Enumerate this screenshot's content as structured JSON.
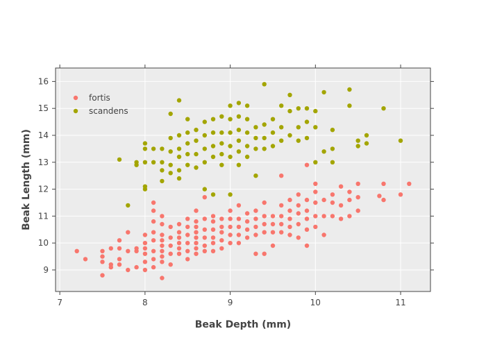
{
  "chart_data": {
    "type": "scatter",
    "title": "",
    "xlabel": "Beak Depth (mm)",
    "ylabel": "Beak Length (mm)",
    "xlim": [
      6.95,
      11.35
    ],
    "ylim": [
      8.2,
      16.5
    ],
    "xticks": [
      7,
      8,
      9,
      10,
      11
    ],
    "yticks": [
      9,
      10,
      11,
      12,
      13,
      14,
      15,
      16
    ],
    "grid": true,
    "legend_position": "top-left",
    "background_color": "#ececec",
    "series": [
      {
        "name": "fortis",
        "color": "#f8766d",
        "points": [
          [
            7.2,
            9.7
          ],
          [
            7.3,
            9.4
          ],
          [
            7.5,
            9.7
          ],
          [
            7.5,
            9.5
          ],
          [
            7.5,
            9.3
          ],
          [
            7.5,
            8.8
          ],
          [
            7.6,
            9.8
          ],
          [
            7.6,
            9.2
          ],
          [
            7.6,
            9.1
          ],
          [
            7.7,
            10.1
          ],
          [
            7.7,
            9.8
          ],
          [
            7.7,
            9.4
          ],
          [
            7.7,
            9.2
          ],
          [
            7.8,
            10.4
          ],
          [
            7.8,
            9.7
          ],
          [
            7.8,
            9.0
          ],
          [
            7.9,
            9.8
          ],
          [
            7.9,
            9.7
          ],
          [
            7.9,
            9.1
          ],
          [
            8.0,
            10.3
          ],
          [
            8.0,
            10.0
          ],
          [
            8.0,
            9.8
          ],
          [
            8.0,
            9.6
          ],
          [
            8.0,
            9.3
          ],
          [
            8.0,
            9.0
          ],
          [
            8.1,
            11.5
          ],
          [
            8.1,
            11.2
          ],
          [
            8.1,
            10.8
          ],
          [
            8.1,
            10.4
          ],
          [
            8.1,
            10.1
          ],
          [
            8.1,
            9.7
          ],
          [
            8.1,
            9.4
          ],
          [
            8.1,
            9.1
          ],
          [
            8.2,
            11.0
          ],
          [
            8.2,
            10.7
          ],
          [
            8.2,
            10.3
          ],
          [
            8.2,
            10.1
          ],
          [
            8.2,
            9.9
          ],
          [
            8.2,
            9.7
          ],
          [
            8.2,
            9.5
          ],
          [
            8.2,
            9.3
          ],
          [
            8.2,
            8.7
          ],
          [
            8.3,
            10.6
          ],
          [
            8.3,
            10.2
          ],
          [
            8.3,
            9.9
          ],
          [
            8.3,
            9.6
          ],
          [
            8.3,
            9.2
          ],
          [
            8.4,
            10.7
          ],
          [
            8.4,
            10.4
          ],
          [
            8.4,
            10.2
          ],
          [
            8.4,
            10.0
          ],
          [
            8.4,
            9.8
          ],
          [
            8.4,
            9.6
          ],
          [
            8.5,
            10.9
          ],
          [
            8.5,
            10.6
          ],
          [
            8.5,
            10.3
          ],
          [
            8.5,
            10.0
          ],
          [
            8.5,
            9.7
          ],
          [
            8.5,
            9.4
          ],
          [
            8.6,
            11.2
          ],
          [
            8.6,
            10.8
          ],
          [
            8.6,
            10.6
          ],
          [
            8.6,
            10.4
          ],
          [
            8.6,
            10.2
          ],
          [
            8.6,
            10.0
          ],
          [
            8.6,
            9.8
          ],
          [
            8.6,
            9.6
          ],
          [
            8.7,
            11.7
          ],
          [
            8.7,
            10.9
          ],
          [
            8.7,
            10.5
          ],
          [
            8.7,
            10.2
          ],
          [
            8.7,
            9.9
          ],
          [
            8.7,
            9.7
          ],
          [
            8.8,
            11.0
          ],
          [
            8.8,
            10.8
          ],
          [
            8.8,
            10.5
          ],
          [
            8.8,
            10.2
          ],
          [
            8.8,
            10.0
          ],
          [
            8.8,
            9.7
          ],
          [
            8.9,
            10.9
          ],
          [
            8.9,
            10.6
          ],
          [
            8.9,
            10.4
          ],
          [
            8.9,
            10.1
          ],
          [
            8.9,
            9.8
          ],
          [
            9.0,
            11.2
          ],
          [
            9.0,
            10.9
          ],
          [
            9.0,
            10.6
          ],
          [
            9.0,
            10.3
          ],
          [
            9.0,
            10.0
          ],
          [
            9.1,
            11.4
          ],
          [
            9.1,
            10.9
          ],
          [
            9.1,
            10.6
          ],
          [
            9.1,
            10.3
          ],
          [
            9.1,
            10.0
          ],
          [
            9.2,
            11.1
          ],
          [
            9.2,
            10.8
          ],
          [
            9.2,
            10.5
          ],
          [
            9.2,
            10.2
          ],
          [
            9.3,
            11.2
          ],
          [
            9.3,
            10.9
          ],
          [
            9.3,
            10.6
          ],
          [
            9.3,
            10.3
          ],
          [
            9.3,
            9.6
          ],
          [
            9.4,
            11.5
          ],
          [
            9.4,
            11.0
          ],
          [
            9.4,
            10.7
          ],
          [
            9.4,
            10.4
          ],
          [
            9.4,
            9.6
          ],
          [
            9.5,
            11.0
          ],
          [
            9.5,
            10.7
          ],
          [
            9.5,
            10.4
          ],
          [
            9.5,
            9.9
          ],
          [
            9.6,
            11.4
          ],
          [
            9.6,
            11.0
          ],
          [
            9.6,
            10.7
          ],
          [
            9.6,
            10.4
          ],
          [
            9.6,
            12.5
          ],
          [
            9.7,
            11.6
          ],
          [
            9.7,
            11.2
          ],
          [
            9.7,
            10.9
          ],
          [
            9.7,
            10.6
          ],
          [
            9.7,
            10.3
          ],
          [
            9.8,
            11.8
          ],
          [
            9.8,
            11.4
          ],
          [
            9.8,
            11.1
          ],
          [
            9.8,
            10.7
          ],
          [
            9.8,
            10.2
          ],
          [
            9.9,
            12.9
          ],
          [
            9.9,
            11.6
          ],
          [
            9.9,
            11.2
          ],
          [
            9.9,
            10.9
          ],
          [
            9.9,
            10.5
          ],
          [
            9.9,
            9.9
          ],
          [
            10.0,
            12.2
          ],
          [
            10.0,
            11.9
          ],
          [
            10.0,
            11.5
          ],
          [
            10.0,
            11.0
          ],
          [
            10.0,
            10.6
          ],
          [
            10.1,
            11.6
          ],
          [
            10.1,
            11.0
          ],
          [
            10.1,
            10.3
          ],
          [
            10.2,
            11.8
          ],
          [
            10.2,
            11.5
          ],
          [
            10.2,
            11.0
          ],
          [
            10.3,
            12.1
          ],
          [
            10.3,
            11.4
          ],
          [
            10.3,
            10.9
          ],
          [
            10.4,
            11.9
          ],
          [
            10.4,
            11.6
          ],
          [
            10.4,
            11.0
          ],
          [
            10.5,
            12.2
          ],
          [
            10.5,
            11.7
          ],
          [
            10.5,
            11.2
          ],
          [
            10.8,
            12.2
          ],
          [
            10.8,
            11.6
          ],
          [
            11.0,
            11.8
          ],
          [
            11.1,
            12.2
          ],
          [
            10.75,
            11.75
          ]
        ]
      },
      {
        "name": "scandens",
        "color": "#a3a500",
        "points": [
          [
            7.7,
            13.1
          ],
          [
            7.8,
            11.4
          ],
          [
            7.9,
            13.0
          ],
          [
            7.9,
            12.9
          ],
          [
            8.0,
            13.7
          ],
          [
            8.0,
            13.5
          ],
          [
            8.0,
            13.0
          ],
          [
            8.0,
            12.1
          ],
          [
            8.0,
            12.0
          ],
          [
            8.1,
            13.5
          ],
          [
            8.1,
            13.0
          ],
          [
            8.2,
            13.5
          ],
          [
            8.2,
            13.0
          ],
          [
            8.2,
            12.7
          ],
          [
            8.2,
            12.3
          ],
          [
            8.3,
            14.8
          ],
          [
            8.3,
            13.9
          ],
          [
            8.3,
            13.4
          ],
          [
            8.3,
            12.9
          ],
          [
            8.3,
            12.6
          ],
          [
            8.4,
            15.3
          ],
          [
            8.4,
            14.0
          ],
          [
            8.4,
            13.5
          ],
          [
            8.4,
            13.2
          ],
          [
            8.4,
            12.7
          ],
          [
            8.4,
            12.4
          ],
          [
            8.5,
            14.6
          ],
          [
            8.5,
            14.1
          ],
          [
            8.5,
            13.7
          ],
          [
            8.5,
            13.3
          ],
          [
            8.5,
            12.9
          ],
          [
            8.6,
            14.2
          ],
          [
            8.6,
            13.8
          ],
          [
            8.6,
            13.3
          ],
          [
            8.6,
            12.8
          ],
          [
            8.7,
            14.5
          ],
          [
            8.7,
            14.0
          ],
          [
            8.7,
            13.5
          ],
          [
            8.7,
            13.0
          ],
          [
            8.7,
            12.0
          ],
          [
            8.8,
            14.6
          ],
          [
            8.8,
            14.1
          ],
          [
            8.8,
            13.6
          ],
          [
            8.8,
            13.2
          ],
          [
            8.8,
            11.8
          ],
          [
            8.9,
            14.7
          ],
          [
            8.9,
            14.1
          ],
          [
            8.9,
            13.7
          ],
          [
            8.9,
            13.3
          ],
          [
            8.9,
            12.9
          ],
          [
            9.0,
            15.1
          ],
          [
            9.0,
            14.6
          ],
          [
            9.0,
            14.1
          ],
          [
            9.0,
            13.6
          ],
          [
            9.0,
            13.2
          ],
          [
            9.0,
            11.8
          ],
          [
            9.1,
            15.2
          ],
          [
            9.1,
            14.7
          ],
          [
            9.1,
            14.2
          ],
          [
            9.1,
            13.8
          ],
          [
            9.1,
            13.4
          ],
          [
            9.1,
            12.9
          ],
          [
            9.2,
            15.1
          ],
          [
            9.2,
            14.6
          ],
          [
            9.2,
            14.1
          ],
          [
            9.2,
            13.6
          ],
          [
            9.2,
            13.2
          ],
          [
            9.3,
            14.3
          ],
          [
            9.3,
            13.9
          ],
          [
            9.3,
            13.5
          ],
          [
            9.3,
            12.5
          ],
          [
            9.4,
            15.9
          ],
          [
            9.4,
            14.4
          ],
          [
            9.4,
            13.9
          ],
          [
            9.4,
            13.5
          ],
          [
            9.5,
            14.6
          ],
          [
            9.5,
            14.1
          ],
          [
            9.5,
            13.6
          ],
          [
            9.6,
            15.1
          ],
          [
            9.6,
            14.3
          ],
          [
            9.6,
            13.8
          ],
          [
            9.7,
            15.5
          ],
          [
            9.7,
            14.9
          ],
          [
            9.7,
            14.0
          ],
          [
            9.8,
            15.0
          ],
          [
            9.8,
            14.3
          ],
          [
            9.8,
            13.8
          ],
          [
            9.9,
            15.0
          ],
          [
            9.9,
            14.5
          ],
          [
            9.9,
            13.9
          ],
          [
            10.0,
            14.9
          ],
          [
            10.0,
            14.3
          ],
          [
            10.0,
            13.0
          ],
          [
            10.1,
            15.6
          ],
          [
            10.1,
            13.4
          ],
          [
            10.2,
            14.2
          ],
          [
            10.2,
            13.5
          ],
          [
            10.2,
            13.0
          ],
          [
            10.4,
            15.7
          ],
          [
            10.4,
            15.1
          ],
          [
            10.5,
            13.8
          ],
          [
            10.5,
            13.6
          ],
          [
            10.6,
            14.0
          ],
          [
            10.6,
            13.7
          ],
          [
            10.8,
            15.0
          ],
          [
            11.0,
            13.8
          ]
        ]
      }
    ]
  }
}
